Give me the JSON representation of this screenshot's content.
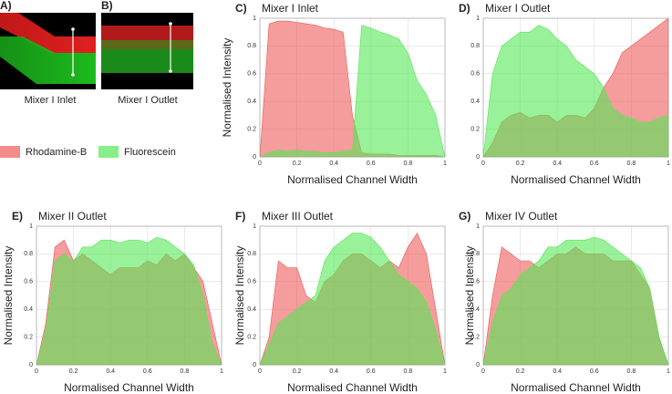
{
  "images": [
    {
      "label": "A)",
      "caption": "Mixer I Inlet"
    },
    {
      "label": "B)",
      "caption": "Mixer I Outlet"
    }
  ],
  "chart_data": [
    {
      "type": "area",
      "panel": "C)",
      "title": "Mixer I Inlet",
      "xlabel": "Normalised Channel Width",
      "ylabel": "Normalised Intensity",
      "x": [
        0,
        0.05,
        0.1,
        0.15,
        0.2,
        0.25,
        0.3,
        0.35,
        0.4,
        0.45,
        0.5,
        0.55,
        0.6,
        0.65,
        0.7,
        0.75,
        0.8,
        0.85,
        0.9,
        0.95,
        1
      ],
      "series": [
        {
          "name": "Rhodamine-B",
          "color": "#ee5a5a",
          "values": [
            0,
            0.96,
            0.98,
            0.98,
            0.97,
            0.96,
            0.95,
            0.93,
            0.92,
            0.9,
            0.3,
            0.03,
            0.02,
            0.02,
            0.02,
            0.01,
            0.01,
            0.01,
            0.01,
            0.01,
            0
          ]
        },
        {
          "name": "Fluorescein",
          "color": "#55e855",
          "values": [
            0,
            0.03,
            0.05,
            0.04,
            0.05,
            0.04,
            0.04,
            0.03,
            0.03,
            0.04,
            0.05,
            0.95,
            0.93,
            0.9,
            0.88,
            0.85,
            0.75,
            0.55,
            0.45,
            0.3,
            0
          ]
        }
      ],
      "xlim": [
        0,
        1
      ],
      "ylim": [
        0,
        1
      ],
      "xticks": [
        0,
        0.2,
        0.4,
        0.6,
        0.8,
        1
      ],
      "yticks": [
        0,
        0.2,
        0.4,
        0.6,
        0.8,
        1
      ],
      "grid": true
    },
    {
      "type": "area",
      "panel": "D)",
      "title": "Mixer I Outlet",
      "xlabel": "Normalised Channel Width",
      "x": [
        0,
        0.05,
        0.1,
        0.15,
        0.2,
        0.25,
        0.3,
        0.35,
        0.4,
        0.45,
        0.5,
        0.55,
        0.6,
        0.65,
        0.7,
        0.75,
        0.8,
        0.85,
        0.9,
        0.95,
        1
      ],
      "series": [
        {
          "color": "#ee5a5a",
          "values": [
            0,
            0.1,
            0.25,
            0.3,
            0.32,
            0.28,
            0.3,
            0.3,
            0.25,
            0.3,
            0.3,
            0.28,
            0.35,
            0.5,
            0.6,
            0.75,
            0.8,
            0.85,
            0.9,
            0.95,
            1
          ]
        },
        {
          "color": "#55e855",
          "values": [
            0,
            0.6,
            0.8,
            0.85,
            0.9,
            0.9,
            0.95,
            0.92,
            0.85,
            0.8,
            0.7,
            0.65,
            0.6,
            0.5,
            0.35,
            0.3,
            0.28,
            0.25,
            0.25,
            0.28,
            0.3
          ]
        }
      ],
      "xlim": [
        0,
        1
      ],
      "ylim": [
        0,
        1
      ],
      "xticks": [
        0,
        0.2,
        0.4,
        0.6,
        0.8,
        1
      ],
      "yticks": [
        0,
        0.2,
        0.4,
        0.6,
        0.8,
        1
      ],
      "grid": true
    },
    {
      "type": "area",
      "panel": "E)",
      "title": "Mixer II Outlet",
      "xlabel": "Normalised Channel Width",
      "ylabel": "Normalised Intensity",
      "x": [
        0,
        0.05,
        0.1,
        0.15,
        0.2,
        0.25,
        0.3,
        0.35,
        0.4,
        0.45,
        0.5,
        0.55,
        0.6,
        0.65,
        0.7,
        0.75,
        0.8,
        0.85,
        0.9,
        0.95,
        1
      ],
      "series": [
        {
          "color": "#ee5a5a",
          "values": [
            0,
            0.3,
            0.85,
            0.9,
            0.75,
            0.8,
            0.75,
            0.7,
            0.65,
            0.7,
            0.7,
            0.7,
            0.75,
            0.72,
            0.8,
            0.75,
            0.8,
            0.7,
            0.6,
            0.3,
            0
          ]
        },
        {
          "color": "#55e855",
          "values": [
            0,
            0.25,
            0.75,
            0.8,
            0.75,
            0.85,
            0.85,
            0.9,
            0.9,
            0.88,
            0.9,
            0.9,
            0.88,
            0.92,
            0.9,
            0.85,
            0.8,
            0.72,
            0.5,
            0.15,
            0
          ]
        }
      ],
      "xlim": [
        0,
        1
      ],
      "ylim": [
        0,
        1
      ],
      "xticks": [
        0,
        0.2,
        0.4,
        0.6,
        0.8,
        1
      ],
      "yticks": [
        0,
        0.2,
        0.4,
        0.6,
        0.8,
        1
      ],
      "grid": true
    },
    {
      "type": "area",
      "panel": "F)",
      "title": "Mixer III Outlet",
      "xlabel": "Normalised Channel Width",
      "ylabel": "Normalised Intensity",
      "x": [
        0,
        0.05,
        0.1,
        0.15,
        0.2,
        0.25,
        0.3,
        0.35,
        0.4,
        0.45,
        0.5,
        0.55,
        0.6,
        0.65,
        0.7,
        0.75,
        0.8,
        0.85,
        0.9,
        0.95,
        1
      ],
      "series": [
        {
          "color": "#ee5a5a",
          "values": [
            0,
            0.2,
            0.75,
            0.7,
            0.7,
            0.5,
            0.45,
            0.6,
            0.65,
            0.75,
            0.8,
            0.8,
            0.75,
            0.7,
            0.75,
            0.7,
            0.85,
            0.95,
            0.8,
            0.4,
            0
          ]
        },
        {
          "color": "#55e855",
          "values": [
            0,
            0.15,
            0.3,
            0.35,
            0.4,
            0.45,
            0.5,
            0.75,
            0.85,
            0.9,
            0.95,
            0.95,
            0.92,
            0.85,
            0.75,
            0.65,
            0.6,
            0.55,
            0.45,
            0.25,
            0
          ]
        }
      ],
      "xlim": [
        0,
        1
      ],
      "ylim": [
        0,
        1
      ],
      "xticks": [
        0,
        0.2,
        0.4,
        0.6,
        0.8,
        1
      ],
      "yticks": [
        0,
        0.2,
        0.4,
        0.6,
        0.8,
        1
      ],
      "grid": true
    },
    {
      "type": "area",
      "panel": "G)",
      "title": "Mixer IV Outlet",
      "xlabel": "Normalised Channel Width",
      "ylabel": "Normalised Intensity",
      "x": [
        0,
        0.05,
        0.1,
        0.15,
        0.2,
        0.25,
        0.3,
        0.35,
        0.4,
        0.45,
        0.5,
        0.55,
        0.6,
        0.65,
        0.7,
        0.75,
        0.8,
        0.85,
        0.9,
        0.95,
        1
      ],
      "series": [
        {
          "color": "#ee5a5a",
          "values": [
            0,
            0.5,
            0.85,
            0.8,
            0.75,
            0.75,
            0.7,
            0.75,
            0.8,
            0.8,
            0.85,
            0.8,
            0.8,
            0.8,
            0.75,
            0.75,
            0.75,
            0.65,
            0.55,
            0.2,
            0
          ]
        },
        {
          "color": "#55e855",
          "values": [
            0,
            0.3,
            0.5,
            0.55,
            0.65,
            0.7,
            0.75,
            0.85,
            0.85,
            0.9,
            0.9,
            0.9,
            0.92,
            0.9,
            0.85,
            0.8,
            0.75,
            0.7,
            0.55,
            0.2,
            0
          ]
        }
      ],
      "xlim": [
        0,
        1
      ],
      "ylim": [
        0,
        1
      ],
      "xticks": [
        0,
        0.2,
        0.4,
        0.6,
        0.8,
        1
      ],
      "yticks": [
        0,
        0.2,
        0.4,
        0.6,
        0.8,
        1
      ],
      "grid": true
    }
  ]
}
